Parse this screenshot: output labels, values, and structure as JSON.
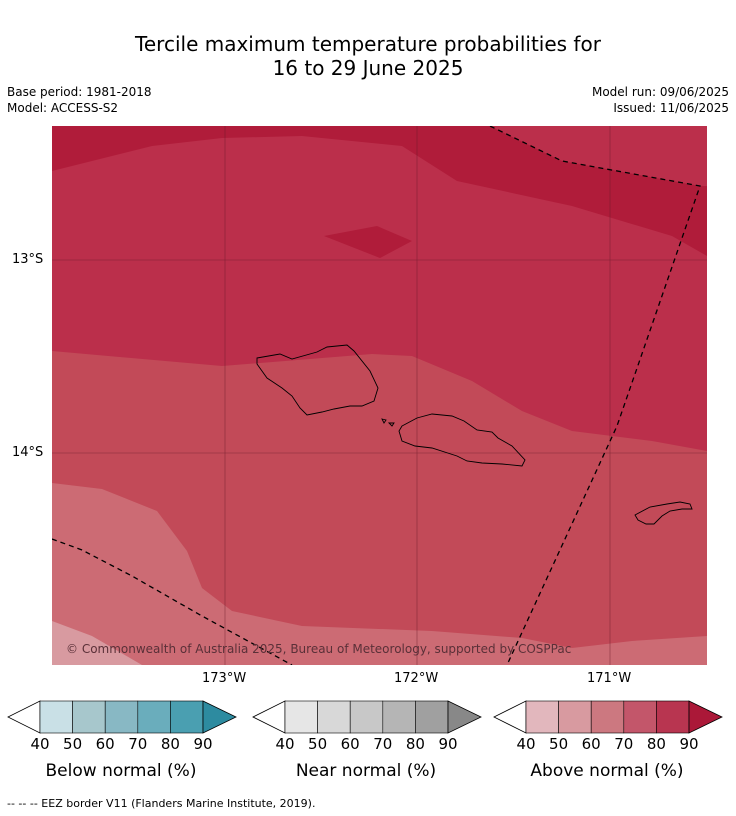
{
  "title": {
    "line1": "Tercile maximum temperature probabilities for",
    "line2": "16 to 29 June 2025"
  },
  "meta": {
    "base_period": "Base period: 1981-2018",
    "model": "Model: ACCESS-S2",
    "model_run": "Model run: 09/06/2025",
    "issued": "Issued: 11/06/2025"
  },
  "map": {
    "lat_ticks": [
      "13°S",
      "14°S"
    ],
    "lon_ticks": [
      "173°W",
      "172°W",
      "171°W"
    ],
    "copyright": "© Commonwealth of Australia 2025, Bureau of Meteorology, supported by COSPPac",
    "colors": {
      "above_90": "#b01c3a",
      "above_80": "#bb2f4b",
      "above_70": "#c24a58",
      "above_60": "#cc6b74",
      "above_50": "#d89aa0"
    }
  },
  "colorbars": [
    {
      "label": "Below normal (%)",
      "ticks": [
        "40",
        "50",
        "60",
        "70",
        "80",
        "90"
      ],
      "colors": [
        "#c9e0e6",
        "#a7c7cc",
        "#88b8c4",
        "#6aadbc",
        "#4a9fb1",
        "#2d8ba0"
      ]
    },
    {
      "label": "Near normal (%)",
      "ticks": [
        "40",
        "50",
        "60",
        "70",
        "80",
        "90"
      ],
      "colors": [
        "#e6e6e6",
        "#d8d8d8",
        "#c8c8c8",
        "#b5b5b5",
        "#a0a0a0",
        "#888888"
      ]
    },
    {
      "label": "Above normal (%)",
      "ticks": [
        "40",
        "50",
        "60",
        "70",
        "80",
        "90"
      ],
      "colors": [
        "#e2b7bd",
        "#d89aa0",
        "#cc7880",
        "#c3566a",
        "#b83550",
        "#ab1838"
      ]
    }
  ],
  "footnote": "-- -- -- EEZ border V11 (Flanders Marine Institute, 2019)."
}
